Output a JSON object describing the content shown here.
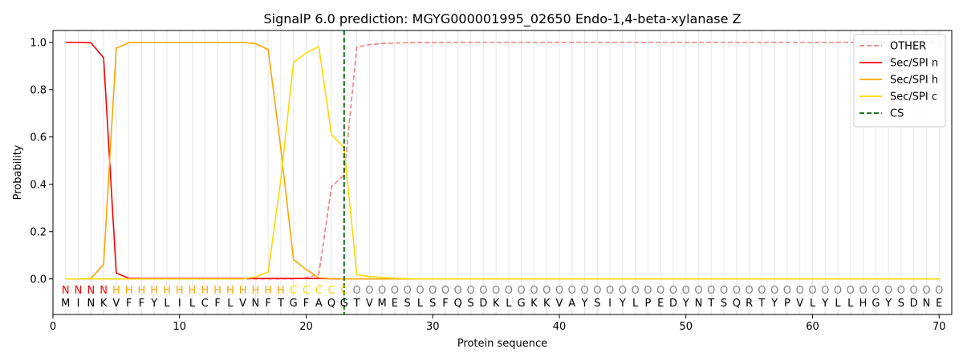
{
  "chart_data": {
    "type": "line",
    "title": "SignalP 6.0 prediction: MGYG000001995_02650 Endo-1,4-beta-xylanase Z",
    "xlabel": "Protein sequence",
    "ylabel": "Probability",
    "xlim": [
      0,
      71
    ],
    "ylim": [
      -0.15,
      1.05
    ],
    "xticks": [
      0,
      10,
      20,
      30,
      40,
      50,
      60,
      70
    ],
    "yticks": [
      0.0,
      0.2,
      0.4,
      0.6,
      0.8,
      1.0
    ],
    "ytick_labels": [
      "0.0",
      "0.2",
      "0.4",
      "0.6",
      "0.8",
      "1.0"
    ],
    "legend_position": "top-right",
    "sequence": [
      "M",
      "I",
      "N",
      "K",
      "V",
      "F",
      "F",
      "Y",
      "L",
      "I",
      "L",
      "C",
      "F",
      "L",
      "V",
      "N",
      "F",
      "T",
      "G",
      "F",
      "A",
      "Q",
      "G",
      "T",
      "V",
      "M",
      "E",
      "S",
      "L",
      "S",
      "F",
      "Q",
      "S",
      "D",
      "K",
      "L",
      "G",
      "K",
      "K",
      "V",
      "A",
      "Y",
      "S",
      "I",
      "Y",
      "L",
      "P",
      "E",
      "D",
      "Y",
      "N",
      "T",
      "S",
      "Q",
      "R",
      "T",
      "Y",
      "P",
      "V",
      "L",
      "Y",
      "L",
      "L",
      "H",
      "G",
      "Y",
      "S",
      "D",
      "N",
      "E"
    ],
    "region_labels": [
      "N",
      "N",
      "N",
      "N",
      "H",
      "H",
      "H",
      "H",
      "H",
      "H",
      "H",
      "H",
      "H",
      "H",
      "H",
      "H",
      "H",
      "H",
      "C",
      "C",
      "C",
      "C",
      "C",
      "O",
      "O",
      "O",
      "O",
      "O",
      "O",
      "O",
      "O",
      "O",
      "O",
      "O",
      "O",
      "O",
      "O",
      "O",
      "O",
      "O",
      "O",
      "O",
      "O",
      "O",
      "O",
      "O",
      "O",
      "O",
      "O",
      "O",
      "O",
      "O",
      "O",
      "O",
      "O",
      "O",
      "O",
      "O",
      "O",
      "O",
      "O",
      "O",
      "O",
      "O",
      "O",
      "O",
      "O",
      "O",
      "O",
      "O"
    ],
    "region_colors": {
      "N": "#ff0000",
      "H": "#ffa500",
      "C": "#ffd700",
      "O": "#808080"
    },
    "cleavage_site": 23,
    "series": [
      {
        "name": "OTHER",
        "color": "#f08080",
        "dash": true,
        "values": [
          0,
          0,
          0,
          0,
          0,
          0,
          0,
          0,
          0,
          0,
          0,
          0,
          0,
          0,
          0,
          0,
          0,
          0,
          0,
          0.005,
          0.02,
          0.39,
          0.44,
          0.98,
          0.99,
          0.995,
          0.997,
          0.998,
          0.999,
          0.999,
          1,
          1,
          1,
          1,
          1,
          1,
          1,
          1,
          1,
          1,
          1,
          1,
          1,
          1,
          1,
          1,
          1,
          1,
          1,
          1,
          1,
          1,
          1,
          1,
          1,
          1,
          1,
          1,
          1,
          1,
          1,
          1,
          1,
          1,
          1,
          1,
          1,
          1,
          1,
          1
        ]
      },
      {
        "name": "Sec/SPI n",
        "color": "#ff0000",
        "dash": false,
        "values": [
          1.0,
          1.0,
          0.998,
          0.935,
          0.025,
          0.003,
          0.002,
          0.002,
          0.002,
          0.002,
          0.002,
          0.002,
          0.002,
          0.002,
          0.002,
          0.002,
          0.002,
          0.002,
          0.002,
          0.002,
          0.002,
          0.001,
          0,
          0,
          0,
          0,
          0,
          0,
          0,
          0,
          0,
          0,
          0,
          0,
          0,
          0,
          0,
          0,
          0,
          0,
          0,
          0,
          0,
          0,
          0,
          0,
          0,
          0,
          0,
          0,
          0,
          0,
          0,
          0,
          0,
          0,
          0,
          0,
          0,
          0,
          0,
          0,
          0,
          0,
          0,
          0,
          0,
          0,
          0,
          0
        ]
      },
      {
        "name": "Sec/SPI h",
        "color": "#ffa500",
        "dash": false,
        "values": [
          0,
          0,
          0.002,
          0.062,
          0.975,
          0.999,
          1,
          1,
          1,
          1,
          1,
          1,
          1,
          1,
          1,
          0.994,
          0.97,
          0.55,
          0.082,
          0.04,
          0.005,
          0.001,
          0,
          0,
          0,
          0,
          0,
          0,
          0,
          0,
          0,
          0,
          0,
          0,
          0,
          0,
          0,
          0,
          0,
          0,
          0,
          0,
          0,
          0,
          0,
          0,
          0,
          0,
          0,
          0,
          0,
          0,
          0,
          0,
          0,
          0,
          0,
          0,
          0,
          0,
          0,
          0,
          0,
          0,
          0,
          0,
          0,
          0,
          0,
          0
        ]
      },
      {
        "name": "Sec/SPI c",
        "color": "#ffd700",
        "dash": false,
        "values": [
          0,
          0,
          0,
          0,
          0,
          0,
          0,
          0,
          0,
          0,
          0,
          0,
          0,
          0,
          0,
          0.008,
          0.03,
          0.42,
          0.915,
          0.955,
          0.982,
          0.61,
          0.555,
          0.018,
          0.01,
          0.006,
          0.003,
          0.001,
          0,
          0,
          0,
          0,
          0,
          0,
          0,
          0,
          0,
          0,
          0,
          0,
          0,
          0,
          0,
          0,
          0,
          0,
          0,
          0,
          0,
          0,
          0,
          0,
          0,
          0,
          0,
          0,
          0,
          0,
          0,
          0,
          0,
          0,
          0,
          0,
          0,
          0,
          0,
          0,
          0,
          0
        ]
      }
    ],
    "legend_cs_label": "CS",
    "legend_cs_color": "#006400"
  }
}
